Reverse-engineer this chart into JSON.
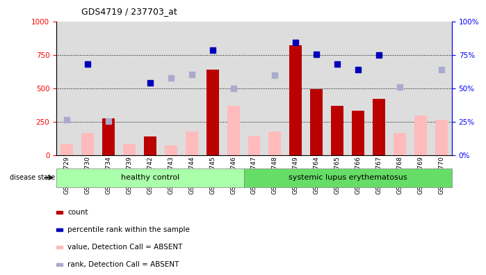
{
  "title": "GDS4719 / 237703_at",
  "samples": [
    "GSM349729",
    "GSM349730",
    "GSM349734",
    "GSM349739",
    "GSM349742",
    "GSM349743",
    "GSM349744",
    "GSM349745",
    "GSM349746",
    "GSM349747",
    "GSM349748",
    "GSM349749",
    "GSM349764",
    "GSM349765",
    "GSM349766",
    "GSM349767",
    "GSM349768",
    "GSM349769",
    "GSM349770"
  ],
  "n_healthy": 9,
  "n_sle": 10,
  "count": [
    null,
    null,
    275,
    null,
    140,
    null,
    null,
    640,
    null,
    null,
    null,
    820,
    490,
    370,
    330,
    420,
    null,
    null,
    null
  ],
  "percentile_rank": [
    null,
    680,
    null,
    null,
    540,
    null,
    null,
    785,
    null,
    null,
    null,
    840,
    755,
    680,
    640,
    750,
    null,
    null,
    null
  ],
  "value_absent": [
    80,
    165,
    null,
    80,
    null,
    70,
    175,
    null,
    370,
    145,
    175,
    null,
    null,
    null,
    null,
    null,
    165,
    295,
    265
  ],
  "rank_absent": [
    265,
    null,
    255,
    null,
    null,
    575,
    600,
    null,
    500,
    null,
    595,
    null,
    null,
    null,
    null,
    null,
    510,
    null,
    640
  ],
  "ylim_left": [
    0,
    1000
  ],
  "ylim_right": [
    0,
    100
  ],
  "grid_lines": [
    250,
    500,
    750
  ],
  "bar_color_count": "#bb0000",
  "bar_color_value_absent": "#ffbbbb",
  "marker_color_percentile": "#0000bb",
  "marker_color_rank_absent": "#aaaacc",
  "col_bg_color": "#dddddd",
  "group_color_healthy": "#aaffaa",
  "group_color_sle": "#66dd66",
  "legend_items": [
    {
      "label": "count",
      "color": "#bb0000"
    },
    {
      "label": "percentile rank within the sample",
      "color": "#0000bb"
    },
    {
      "label": "value, Detection Call = ABSENT",
      "color": "#ffbbbb"
    },
    {
      "label": "rank, Detection Call = ABSENT",
      "color": "#aaaacc"
    }
  ]
}
